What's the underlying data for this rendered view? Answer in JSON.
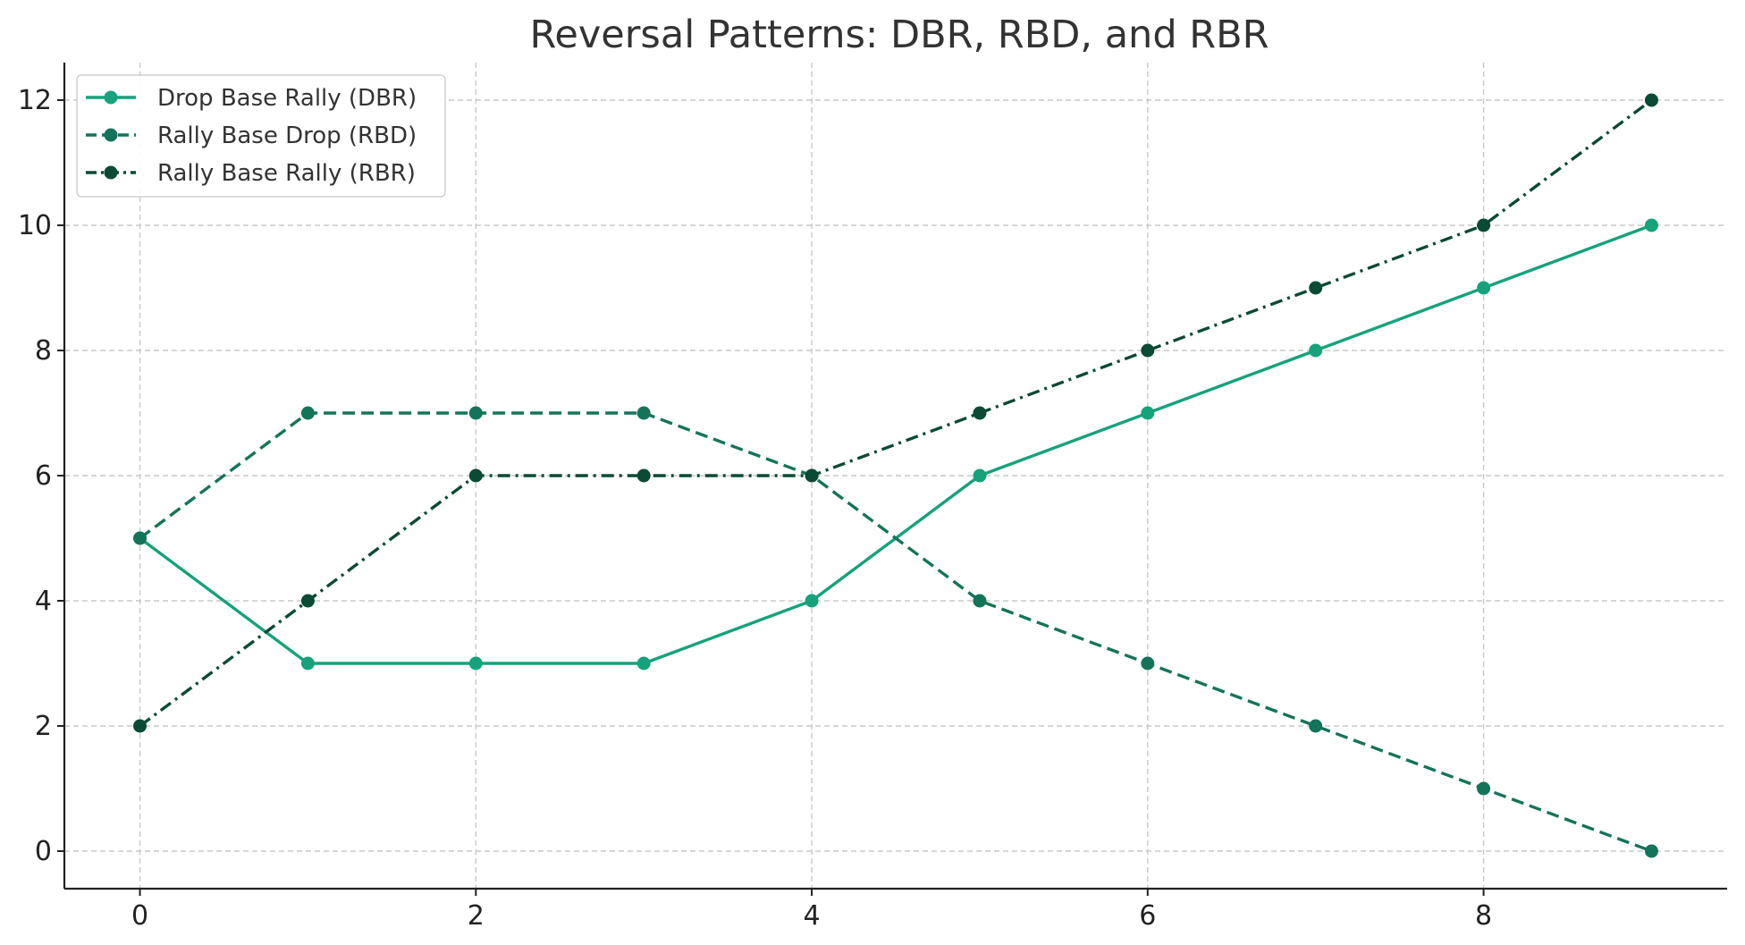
{
  "chart_data": {
    "type": "line",
    "title": "Reversal Patterns: DBR, RBD, and RBR",
    "xlabel": "",
    "ylabel": "",
    "x": [
      0,
      1,
      2,
      3,
      4,
      5,
      6,
      7,
      8,
      9
    ],
    "xlim": [
      -0.45,
      9.45
    ],
    "ylim": [
      -0.6,
      12.6
    ],
    "xticks": [
      0,
      2,
      4,
      6,
      8
    ],
    "yticks": [
      0,
      2,
      4,
      6,
      8,
      10,
      12
    ],
    "grid": true,
    "legend_position": "top-left",
    "series": [
      {
        "name": "Drop Base Rally (DBR)",
        "values": [
          5,
          3,
          3,
          3,
          4,
          6,
          7,
          8,
          9,
          10
        ],
        "color": "#16a27a",
        "line_style": "solid",
        "marker": "circle"
      },
      {
        "name": "Rally Base Drop (RBD)",
        "values": [
          5,
          7,
          7,
          7,
          6,
          4,
          3,
          2,
          1,
          0
        ],
        "color": "#14745a",
        "line_style": "dashed",
        "marker": "circle"
      },
      {
        "name": "Rally Base Rally (RBR)",
        "values": [
          2,
          4,
          6,
          6,
          6,
          7,
          8,
          9,
          10,
          12
        ],
        "color": "#0b4a35",
        "line_style": "dashdot",
        "marker": "circle"
      }
    ]
  }
}
